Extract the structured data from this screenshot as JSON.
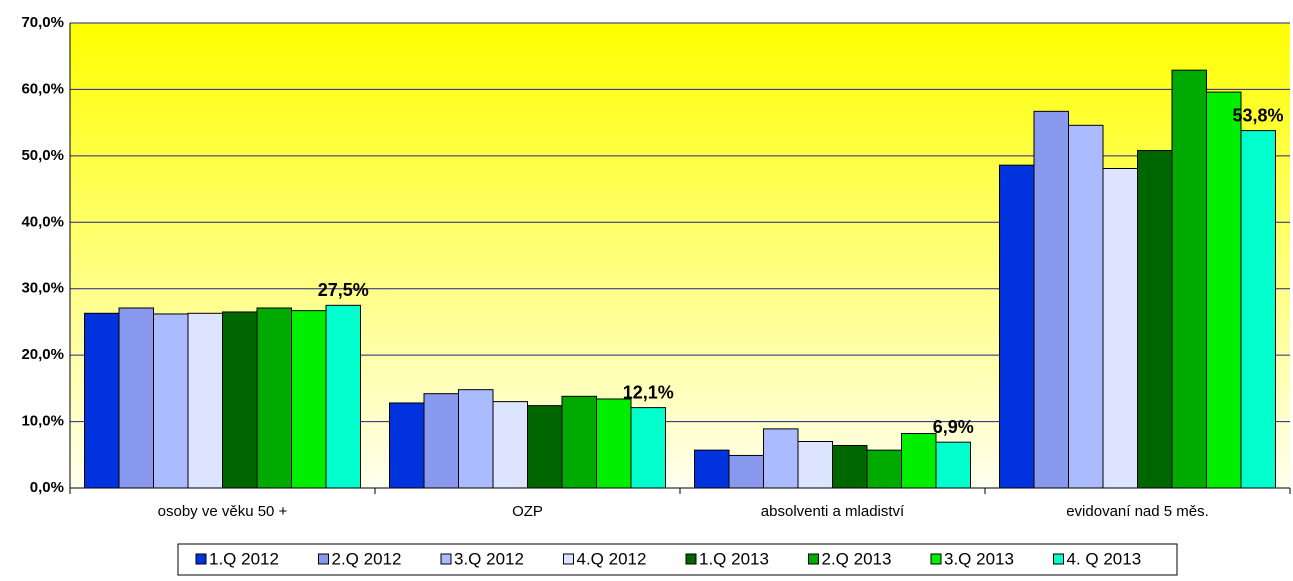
{
  "chart_data": {
    "type": "bar",
    "categories": [
      "osoby ve věku 50 +",
      "OZP",
      "absolventi a mladiství",
      "evidovaní nad 5 měs."
    ],
    "series": [
      {
        "name": "1.Q 2012",
        "color": "#0033dd",
        "values": [
          26.3,
          12.8,
          5.7,
          48.6
        ]
      },
      {
        "name": "2.Q 2012",
        "color": "#8899ee",
        "values": [
          27.1,
          14.2,
          4.9,
          56.7
        ]
      },
      {
        "name": "3.Q 2012",
        "color": "#aabbff",
        "values": [
          26.2,
          14.8,
          8.9,
          54.6
        ]
      },
      {
        "name": "4.Q 2012",
        "color": "#dde4ff",
        "values": [
          26.3,
          13.0,
          7.0,
          48.1
        ]
      },
      {
        "name": "1.Q 2013",
        "color": "#006600",
        "values": [
          26.5,
          12.4,
          6.4,
          50.8
        ]
      },
      {
        "name": "2.Q 2013",
        "color": "#00aa00",
        "values": [
          27.1,
          13.8,
          5.7,
          62.9
        ]
      },
      {
        "name": "3.Q 2013",
        "color": "#00ee00",
        "values": [
          26.7,
          13.4,
          8.2,
          59.6
        ]
      },
      {
        "name": "4. Q 2013",
        "color": "#00ffcc",
        "values": [
          27.5,
          12.1,
          6.9,
          53.8
        ],
        "value_labels": [
          "27,5%",
          "12,1%",
          "6,9%",
          "53,8%"
        ]
      }
    ],
    "ylim": [
      0,
      70
    ],
    "yticks": [
      {
        "value": 0,
        "label": "0,0%"
      },
      {
        "value": 10,
        "label": "10,0%"
      },
      {
        "value": 20,
        "label": "20,0%"
      },
      {
        "value": 30,
        "label": "30,0%"
      },
      {
        "value": 40,
        "label": "40,0%"
      },
      {
        "value": 50,
        "label": "50,0%"
      },
      {
        "value": 60,
        "label": "60,0%"
      },
      {
        "value": 70,
        "label": "70,0%"
      }
    ],
    "grid": true,
    "legend": "bottom"
  }
}
